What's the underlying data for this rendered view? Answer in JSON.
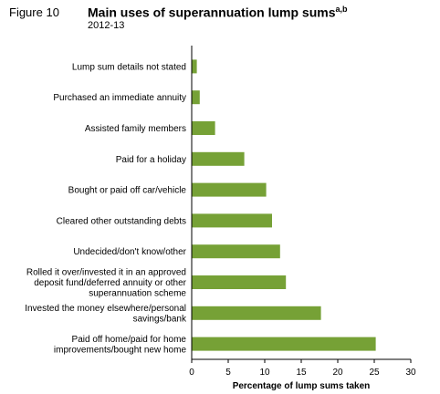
{
  "figure_label": "Figure 10",
  "title": "Main uses of superannuation lump sums",
  "title_superscript": "a,b",
  "subtitle": "2012-13",
  "chart_data": {
    "type": "bar",
    "orientation": "horizontal",
    "categories": [
      "Lump sum details not stated",
      "Purchased an immediate annuity",
      "Assisted family members",
      "Paid for a holiday",
      "Bought or paid off car/vehicle",
      "Cleared other outstanding debts",
      "Undecided/don't know/other",
      "Rolled it over/invested it in an approved deposit fund/deferred annuity or other superannuation scheme",
      "Invested the money elsewhere/personal savings/bank",
      "Paid off home/paid for home improvements/bought new home"
    ],
    "category_lines": [
      [
        "Lump sum details not stated"
      ],
      [
        "Purchased an immediate annuity"
      ],
      [
        "Assisted family members"
      ],
      [
        "Paid for a holiday"
      ],
      [
        "Bought or paid off car/vehicle"
      ],
      [
        "Cleared other outstanding debts"
      ],
      [
        "Undecided/don't know/other"
      ],
      [
        "Rolled it over/invested it in an approved",
        "deposit fund/deferred annuity or other",
        "superannuation scheme"
      ],
      [
        "Invested the money elsewhere/personal",
        "savings/bank"
      ],
      [
        "Paid off home/paid for home",
        "improvements/bought new home"
      ]
    ],
    "values": [
      0.7,
      1.1,
      3.2,
      7.2,
      10.2,
      11.0,
      12.1,
      12.9,
      17.7,
      25.2
    ],
    "xlabel": "Percentage of lump sums taken",
    "xlim": [
      0,
      30
    ],
    "xticks": [
      0,
      5,
      10,
      15,
      20,
      25,
      30
    ],
    "grid": false,
    "bar_color": "#76a136"
  }
}
